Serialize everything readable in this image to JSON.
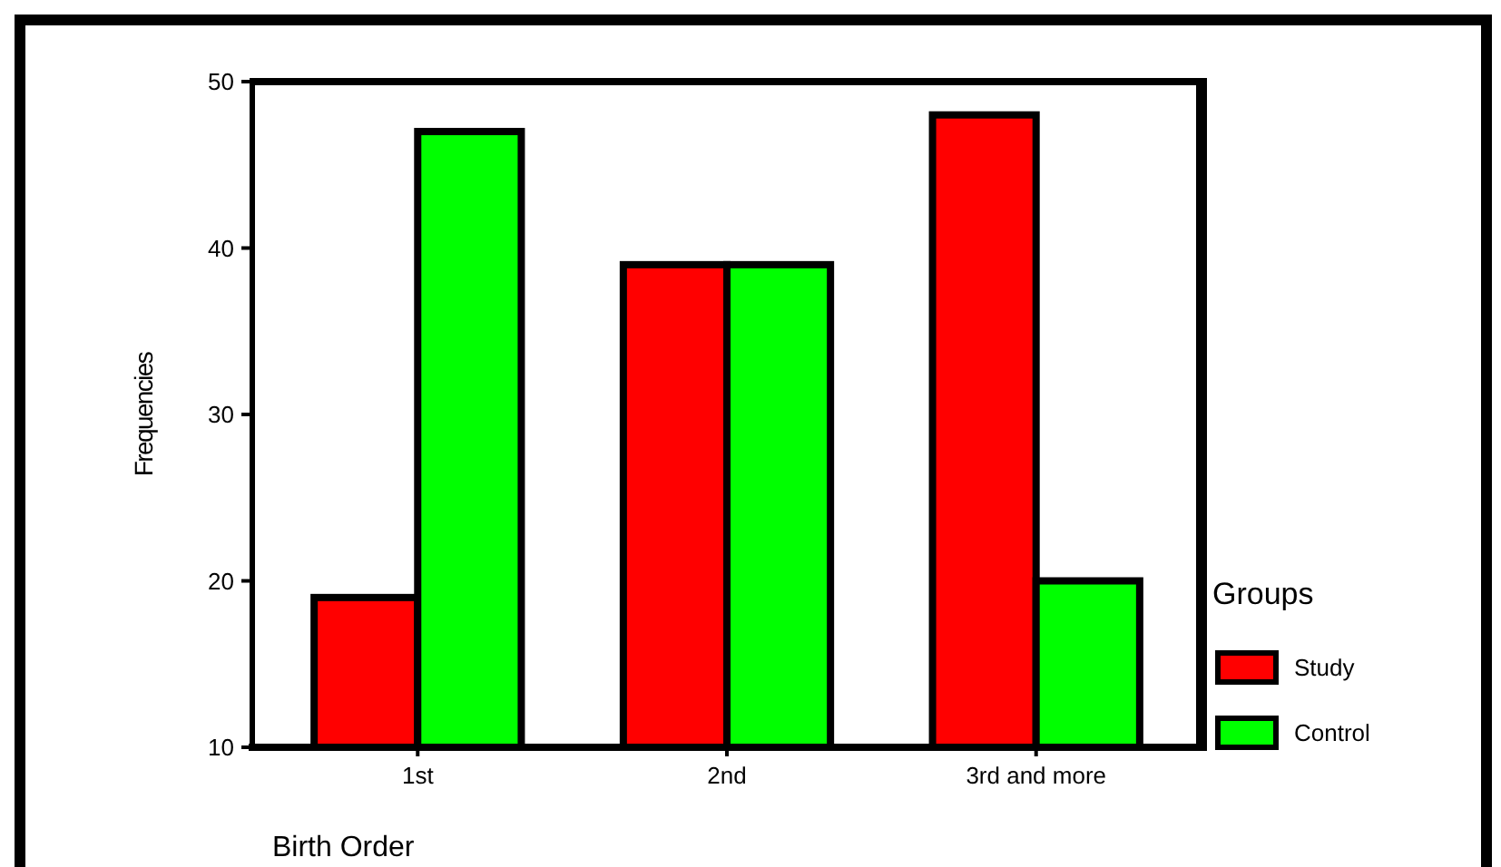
{
  "chart_data": {
    "type": "bar",
    "xlabel": "Birth Order",
    "ylabel": "Frequencies",
    "legend_title": "Groups",
    "categories": [
      "1st",
      "2nd",
      "3rd and more"
    ],
    "series": [
      {
        "name": "Study",
        "color": "#ff0000",
        "values": [
          19,
          39,
          48
        ]
      },
      {
        "name": "Control",
        "color": "#00ff00",
        "values": [
          47,
          39,
          20
        ]
      }
    ],
    "ylim": [
      10,
      50
    ],
    "yticks": [
      10,
      20,
      30,
      40,
      50
    ],
    "grid": false,
    "legend": "right"
  }
}
